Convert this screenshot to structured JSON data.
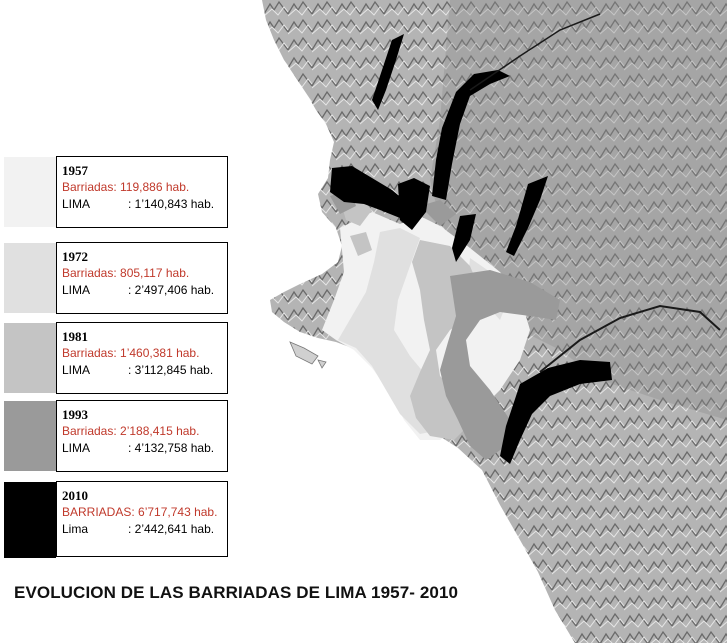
{
  "title": "EVOLUCION DE LAS BARRIADAS DE LIMA 1957- 2010",
  "legend": [
    {
      "year": "1957",
      "barriadas": "Barriadas: 119,886 hab.",
      "lima_label": "LIMA",
      "lima_value": ": 1’140,843 hab.",
      "color": "#f2f2f2"
    },
    {
      "year": "1972",
      "barriadas": "Barriadas: 805,117 hab.",
      "lima_label": "LIMA",
      "lima_value": ": 2’497,406 hab.",
      "color": "#e0e0e0"
    },
    {
      "year": "1981",
      "barriadas": "Barriadas: 1’460,381 hab.",
      "lima_label": "LIMA",
      "lima_value": ": 3’112,845 hab.",
      "color": "#c4c4c4"
    },
    {
      "year": "1993",
      "barriadas": "Barriadas: 2’188,415 hab.",
      "lima_label": "LIMA",
      "lima_value": ": 4’132,758 hab.",
      "color": "#9a9a9a"
    },
    {
      "year": "2010",
      "barriadas": "BARRIADAS: 6’717,743 hab.",
      "lima_label": "Lima",
      "lima_value": ": 2’442,641 hab.",
      "color": "#000000"
    }
  ],
  "map_colors": {
    "relief": "#a8a8a8",
    "relief_dark": "#6e6e6e",
    "relief_light": "#d6d6d6"
  }
}
